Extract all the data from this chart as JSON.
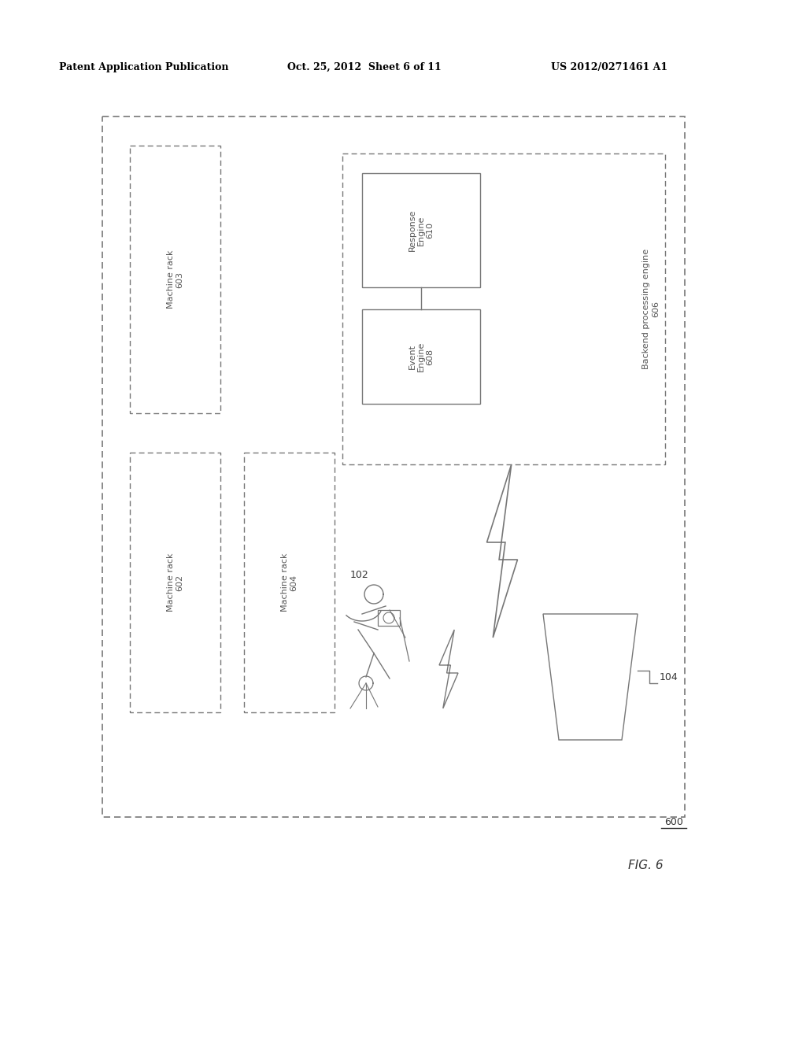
{
  "bg_color": "#ffffff",
  "header_text": "Patent Application Publication",
  "header_date": "Oct. 25, 2012  Sheet 6 of 11",
  "header_patent": "US 2012/0271461 A1",
  "fig_label": "FIG. 6",
  "fig_number": "600",
  "line_color": "#777777",
  "text_color": "#555555"
}
